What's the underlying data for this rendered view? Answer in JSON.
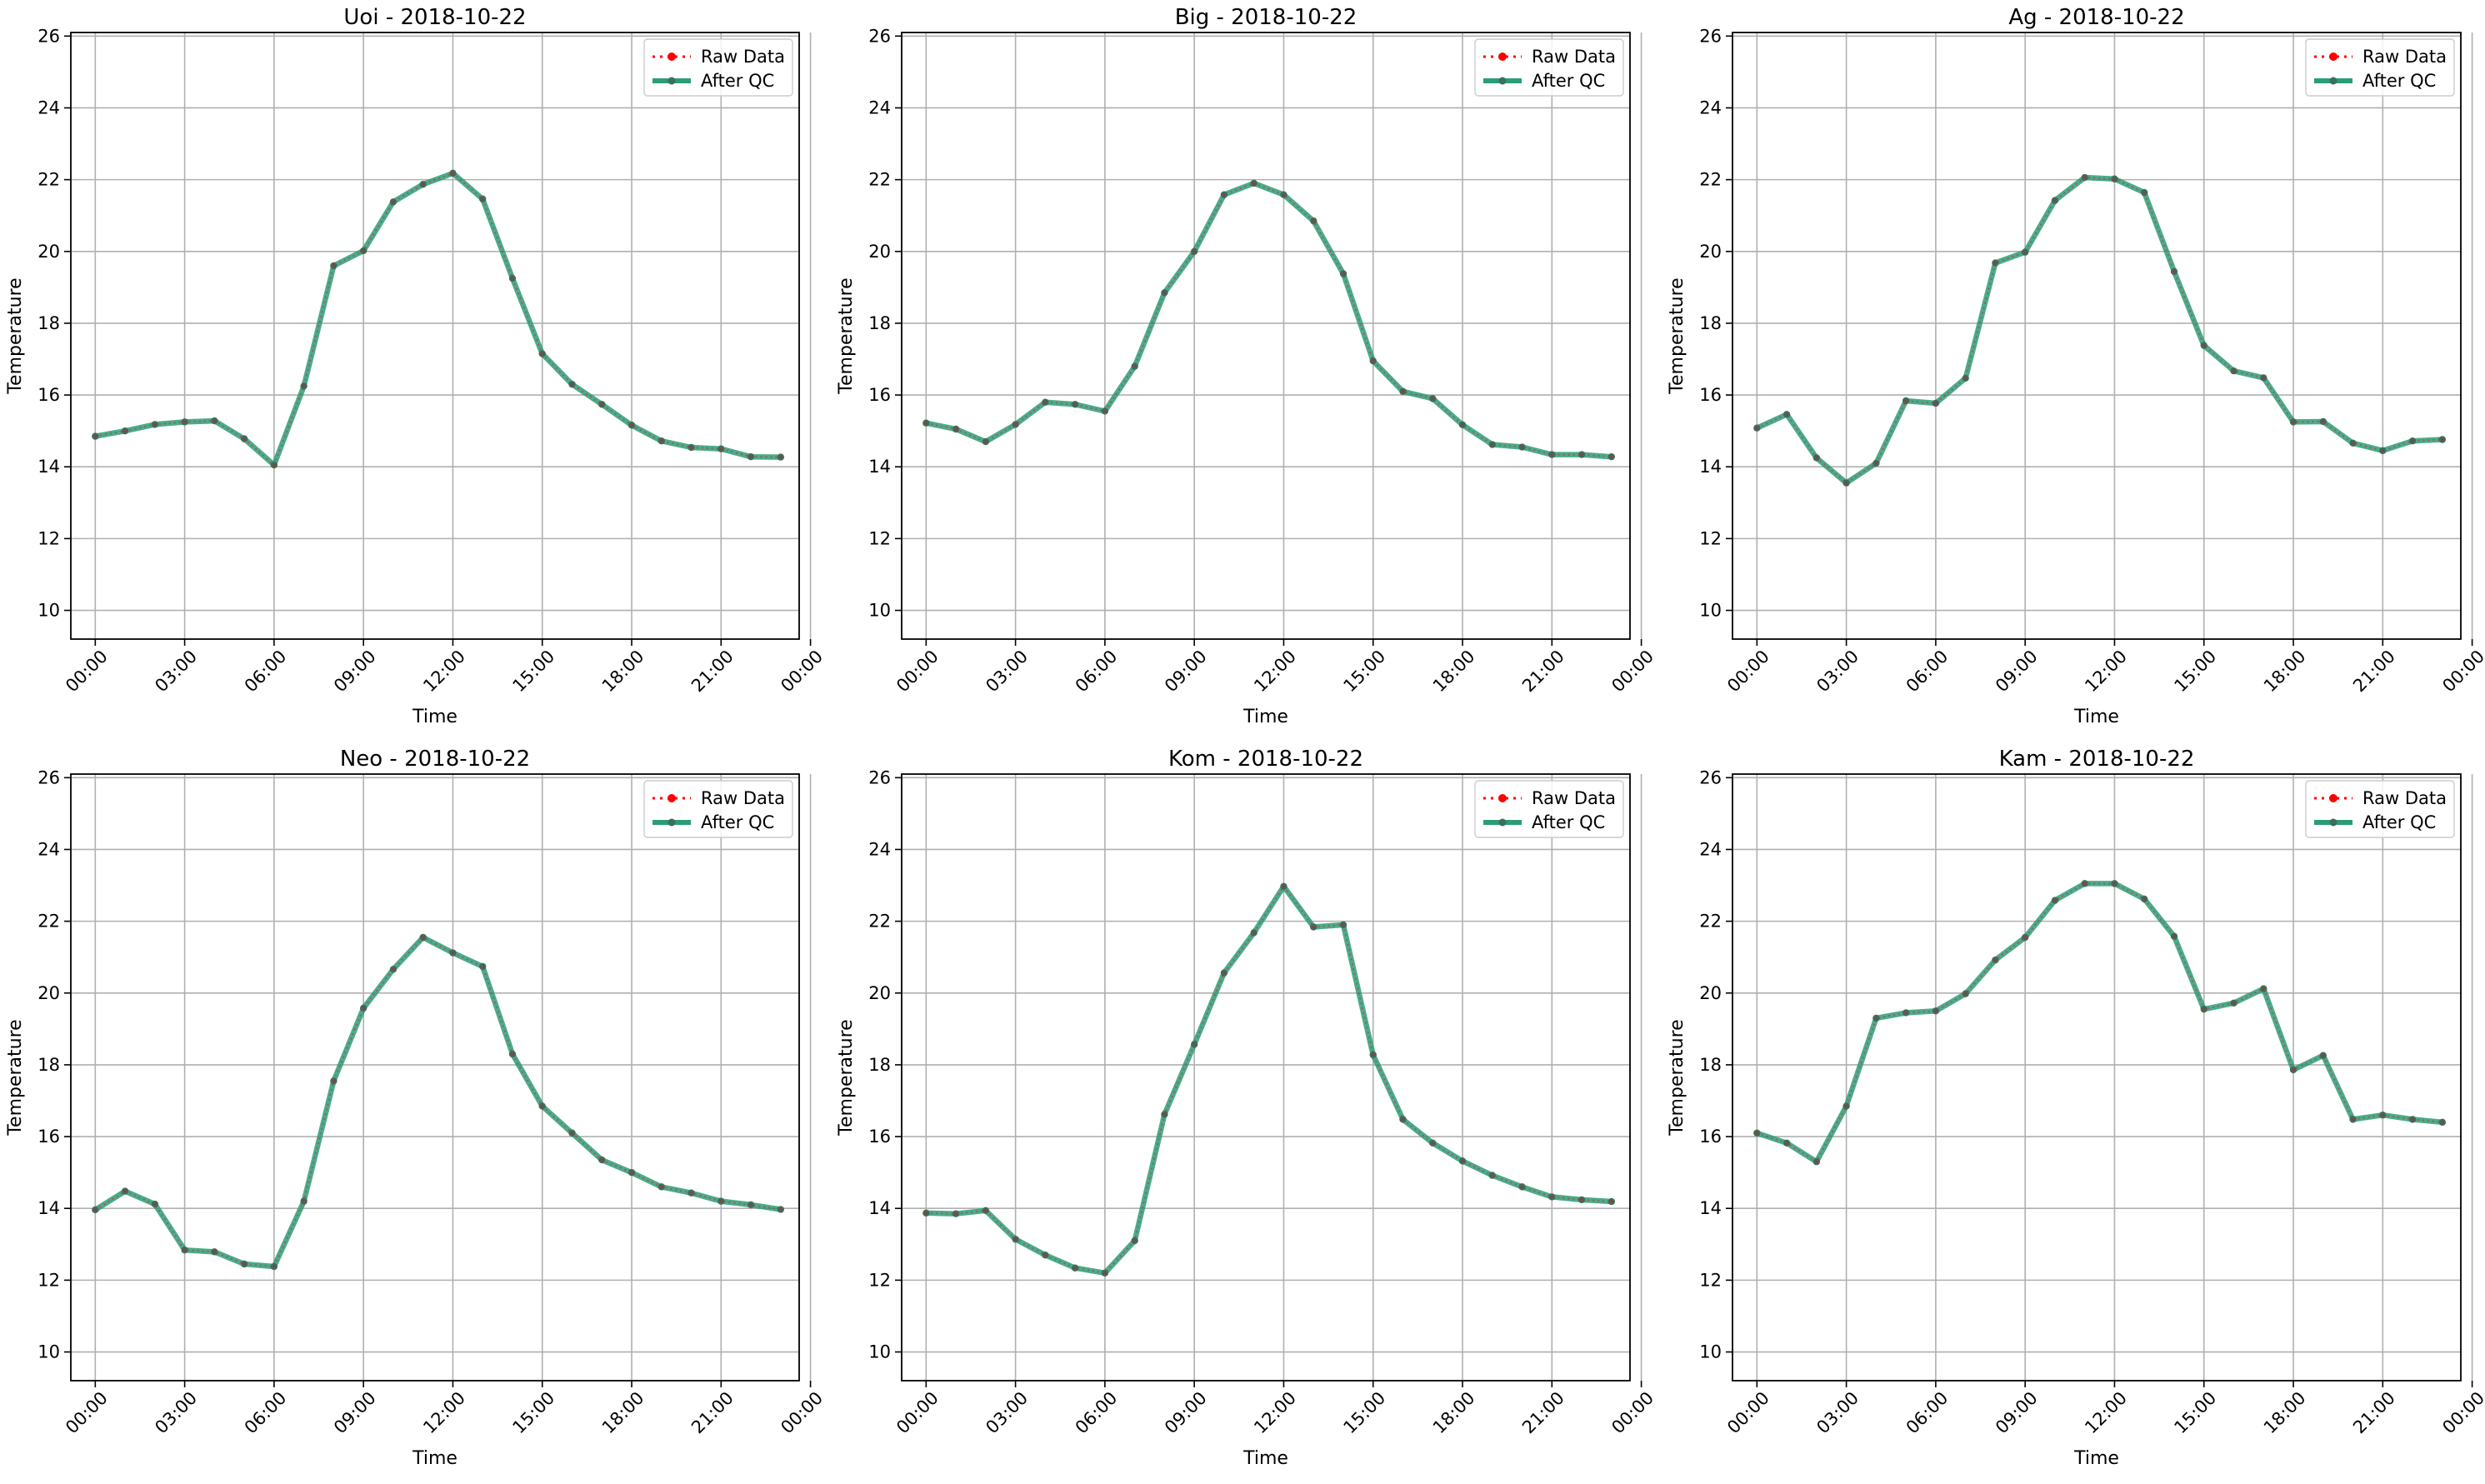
{
  "chart_data": [
    {
      "type": "line",
      "title": "Uoi - 2018-10-22",
      "xlabel": "Time",
      "ylabel": "Temperature",
      "x_tick_labels": [
        "00:00",
        "03:00",
        "06:00",
        "09:00",
        "12:00",
        "15:00",
        "18:00",
        "21:00",
        "00:00"
      ],
      "ylim": [
        9.2,
        26.1
      ],
      "y_ticks": [
        10,
        12,
        14,
        16,
        18,
        20,
        22,
        24,
        26
      ],
      "grid": true,
      "legend_position": "top-right",
      "series": [
        {
          "name": "Raw Data",
          "values": [
            14.85,
            15.0,
            15.18,
            15.25,
            15.28,
            14.78,
            14.05,
            16.25,
            19.6,
            20.02,
            21.38,
            21.87,
            22.18,
            21.46,
            19.25,
            17.15,
            16.3,
            15.74,
            15.16,
            14.72,
            14.54,
            14.5,
            14.28,
            14.27
          ]
        },
        {
          "name": "After QC",
          "values": [
            14.85,
            15.0,
            15.18,
            15.25,
            15.28,
            14.78,
            14.05,
            16.25,
            19.6,
            20.02,
            21.38,
            21.87,
            22.18,
            21.46,
            19.25,
            17.15,
            16.3,
            15.74,
            15.16,
            14.72,
            14.54,
            14.5,
            14.28,
            14.27
          ]
        }
      ]
    },
    {
      "type": "line",
      "title": "Big - 2018-10-22",
      "xlabel": "Time",
      "ylabel": "Temperature",
      "x_tick_labels": [
        "00:00",
        "03:00",
        "06:00",
        "09:00",
        "12:00",
        "15:00",
        "18:00",
        "21:00",
        "00:00"
      ],
      "ylim": [
        9.2,
        26.1
      ],
      "y_ticks": [
        10,
        12,
        14,
        16,
        18,
        20,
        22,
        24,
        26
      ],
      "grid": true,
      "legend_position": "top-right",
      "series": [
        {
          "name": "Raw Data",
          "values": [
            15.22,
            15.05,
            14.7,
            15.18,
            15.8,
            15.74,
            15.55,
            16.8,
            18.85,
            20.0,
            21.58,
            21.9,
            21.58,
            20.85,
            19.38,
            16.95,
            16.1,
            15.9,
            15.17,
            14.62,
            14.55,
            14.34,
            14.34,
            14.28
          ]
        },
        {
          "name": "After QC",
          "values": [
            15.22,
            15.05,
            14.7,
            15.18,
            15.8,
            15.74,
            15.55,
            16.8,
            18.85,
            20.0,
            21.58,
            21.9,
            21.58,
            20.85,
            19.38,
            16.95,
            16.1,
            15.9,
            15.17,
            14.62,
            14.55,
            14.34,
            14.34,
            14.28
          ]
        }
      ]
    },
    {
      "type": "line",
      "title": "Ag - 2018-10-22",
      "xlabel": "Time",
      "ylabel": "Temperature",
      "x_tick_labels": [
        "00:00",
        "03:00",
        "06:00",
        "09:00",
        "12:00",
        "15:00",
        "18:00",
        "21:00",
        "00:00"
      ],
      "ylim": [
        9.2,
        26.1
      ],
      "y_ticks": [
        10,
        12,
        14,
        16,
        18,
        20,
        22,
        24,
        26
      ],
      "grid": true,
      "legend_position": "top-right",
      "series": [
        {
          "name": "Raw Data",
          "values": [
            15.08,
            15.46,
            14.25,
            13.55,
            14.1,
            15.84,
            15.77,
            16.47,
            19.68,
            19.98,
            21.42,
            22.06,
            22.02,
            21.64,
            19.44,
            17.38,
            16.67,
            16.48,
            15.25,
            15.26,
            14.66,
            14.45,
            14.72,
            14.76
          ]
        },
        {
          "name": "After QC",
          "values": [
            15.08,
            15.46,
            14.25,
            13.55,
            14.1,
            15.84,
            15.77,
            16.47,
            19.68,
            19.98,
            21.42,
            22.06,
            22.02,
            21.64,
            19.44,
            17.38,
            16.67,
            16.48,
            15.25,
            15.26,
            14.66,
            14.45,
            14.72,
            14.76
          ]
        }
      ]
    },
    {
      "type": "line",
      "title": "Neo - 2018-10-22",
      "xlabel": "Time",
      "ylabel": "Temperature",
      "x_tick_labels": [
        "00:00",
        "03:00",
        "06:00",
        "09:00",
        "12:00",
        "15:00",
        "18:00",
        "21:00",
        "00:00"
      ],
      "ylim": [
        9.2,
        26.1
      ],
      "y_ticks": [
        10,
        12,
        14,
        16,
        18,
        20,
        22,
        24,
        26
      ],
      "grid": true,
      "legend_position": "top-right",
      "series": [
        {
          "name": "Raw Data",
          "values": [
            13.96,
            14.48,
            14.12,
            12.84,
            12.79,
            12.45,
            12.38,
            14.2,
            17.55,
            19.58,
            20.66,
            21.55,
            21.12,
            20.74,
            18.3,
            16.85,
            16.1,
            15.35,
            15.0,
            14.6,
            14.43,
            14.2,
            14.1,
            13.97
          ]
        },
        {
          "name": "After QC",
          "values": [
            13.96,
            14.48,
            14.12,
            12.84,
            12.79,
            12.45,
            12.38,
            14.2,
            17.55,
            19.58,
            20.66,
            21.55,
            21.12,
            20.74,
            18.3,
            16.85,
            16.1,
            15.35,
            15.0,
            14.6,
            14.43,
            14.2,
            14.1,
            13.97
          ]
        }
      ]
    },
    {
      "type": "line",
      "title": "Kom - 2018-10-22",
      "xlabel": "Time",
      "ylabel": "Temperature",
      "x_tick_labels": [
        "00:00",
        "03:00",
        "06:00",
        "09:00",
        "12:00",
        "15:00",
        "18:00",
        "21:00",
        "00:00"
      ],
      "ylim": [
        9.2,
        26.1
      ],
      "y_ticks": [
        10,
        12,
        14,
        16,
        18,
        20,
        22,
        24,
        26
      ],
      "grid": true,
      "legend_position": "top-right",
      "series": [
        {
          "name": "Raw Data",
          "values": [
            13.87,
            13.85,
            13.94,
            13.14,
            12.7,
            12.34,
            12.2,
            13.1,
            16.62,
            18.57,
            20.56,
            21.68,
            22.97,
            21.84,
            21.9,
            18.28,
            16.48,
            15.82,
            15.32,
            14.92,
            14.6,
            14.32,
            14.24,
            14.19
          ]
        },
        {
          "name": "After QC",
          "values": [
            13.87,
            13.85,
            13.94,
            13.14,
            12.7,
            12.34,
            12.2,
            13.1,
            16.62,
            18.57,
            20.56,
            21.68,
            22.97,
            21.84,
            21.9,
            18.28,
            16.48,
            15.82,
            15.32,
            14.92,
            14.6,
            14.32,
            14.24,
            14.19
          ]
        }
      ]
    },
    {
      "type": "line",
      "title": "Kam - 2018-10-22",
      "xlabel": "Time",
      "ylabel": "Temperature",
      "x_tick_labels": [
        "00:00",
        "03:00",
        "06:00",
        "09:00",
        "12:00",
        "15:00",
        "18:00",
        "21:00",
        "00:00"
      ],
      "ylim": [
        9.2,
        26.1
      ],
      "y_ticks": [
        10,
        12,
        14,
        16,
        18,
        20,
        22,
        24,
        26
      ],
      "grid": true,
      "legend_position": "top-right",
      "series": [
        {
          "name": "Raw Data",
          "values": [
            16.1,
            15.82,
            15.3,
            16.85,
            19.3,
            19.45,
            19.5,
            19.98,
            20.92,
            21.55,
            22.58,
            23.05,
            23.05,
            22.62,
            21.58,
            19.55,
            19.72,
            20.12,
            17.86,
            18.26,
            16.48,
            16.6,
            16.48,
            16.4
          ]
        },
        {
          "name": "After QC",
          "values": [
            16.1,
            15.82,
            15.3,
            16.85,
            19.3,
            19.45,
            19.5,
            19.98,
            20.92,
            21.55,
            22.58,
            23.05,
            23.05,
            22.62,
            21.58,
            19.55,
            19.72,
            20.12,
            17.86,
            18.26,
            16.48,
            16.6,
            16.48,
            16.4
          ]
        }
      ]
    }
  ],
  "colors": {
    "raw": "#ff0000",
    "qc": "#2a9d78",
    "grid": "#b0b0b0",
    "axes": "#000000"
  }
}
